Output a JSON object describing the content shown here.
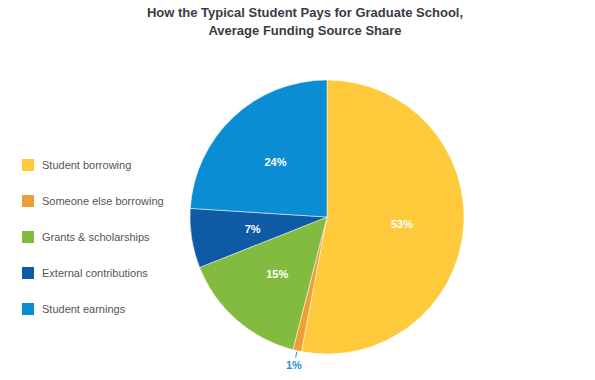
{
  "chart_data": {
    "type": "pie",
    "title": "How the Typical Student Pays for Graduate School,\nAverage Funding Source Share",
    "categories": [
      "Student borrowing",
      "Someone else borrowing",
      "Grants & scholarships",
      "External contributions",
      "Student earnings"
    ],
    "values": [
      53,
      1,
      15,
      7,
      24
    ],
    "value_labels": [
      "53%",
      "1%",
      "15%",
      "7%",
      "24%"
    ],
    "colors": [
      "#ffc93c",
      "#ee9f33",
      "#83bb41",
      "#0f5aa4",
      "#0b8dd4"
    ],
    "data_labels": true,
    "legend": "left"
  }
}
